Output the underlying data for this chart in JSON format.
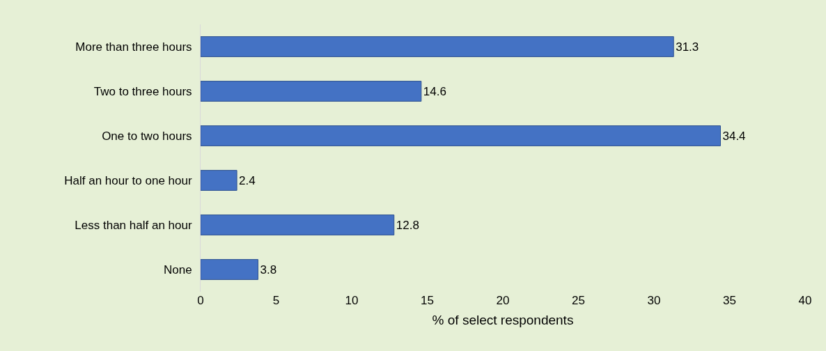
{
  "chart_data": {
    "type": "bar",
    "orientation": "horizontal",
    "xlabel": "% of select respondents",
    "categories": [
      "More than three hours",
      "Two to three hours",
      "One to two hours",
      "Half an hour to one hour",
      "Less than half an hour",
      "None"
    ],
    "values": [
      31.3,
      14.6,
      34.4,
      2.4,
      12.8,
      3.8
    ],
    "color": "#4472c4",
    "xlim": [
      0,
      40
    ],
    "xticks": [
      0,
      5,
      10,
      15,
      20,
      25,
      30,
      35,
      40
    ],
    "data_labels": true,
    "grid": false
  }
}
